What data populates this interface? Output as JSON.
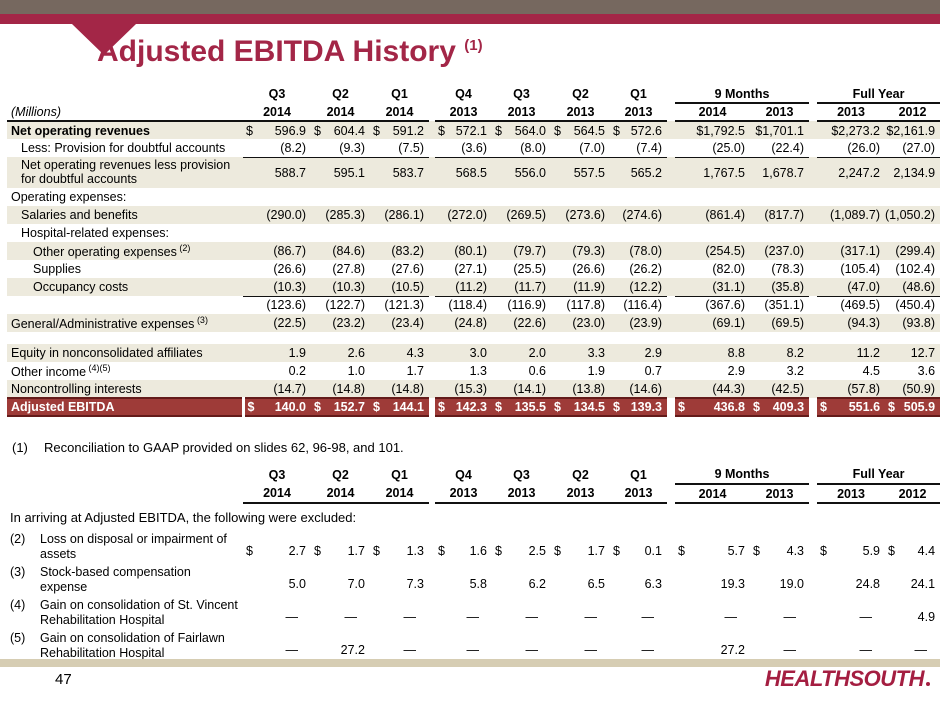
{
  "slide": {
    "title": "Adjusted EBITDA History",
    "title_sup": "(1)",
    "footnote_num": "(1)",
    "footnote_text": "Reconciliation to GAAP provided on slides 62, 96-98, and 101.",
    "page_number": "47",
    "logo_text": "HEALTHSOUTH"
  },
  "colors": {
    "top_bar": "#76685f",
    "accent_maroon": "#a32647",
    "total_row_bg": "#9e3b38",
    "total_row_border": "#641b1a",
    "row_stripe": "#edeadd",
    "bottom_bar": "#d6cdb3",
    "logo": "#a41e41"
  },
  "columns": {
    "units_label": "(Millions)",
    "quarters": [
      "Q3",
      "Q2",
      "Q1",
      "Q4",
      "Q3",
      "Q2",
      "Q1"
    ],
    "groups": [
      "9 Months",
      "Full Year"
    ],
    "years": [
      "2014",
      "2014",
      "2014",
      "2013",
      "2013",
      "2013",
      "2013",
      "2014",
      "2013",
      "2013",
      "2012"
    ]
  },
  "table1": {
    "rows": [
      {
        "label": "Net operating revenues",
        "bold": true,
        "indent": 0,
        "bg": "tan",
        "values": [
          "$ 596.9",
          "$ 604.4",
          "$ 591.2",
          "$ 572.1",
          "$ 564.0",
          "$ 564.5",
          "$ 572.6",
          "$1,792.5",
          "$1,701.1",
          "$2,273.2",
          "$2,161.9"
        ]
      },
      {
        "label": "Less: Provision for doubtful accounts",
        "indent": 1,
        "bg": "white",
        "line": true,
        "values": [
          "(8.2)",
          "(9.3)",
          "(7.5)",
          "(3.6)",
          "(8.0)",
          "(7.0)",
          "(7.4)",
          "(25.0)",
          "(22.4)",
          "(26.0)",
          "(27.0)"
        ]
      },
      {
        "label": "Net operating revenues less provision for doubtful accounts",
        "indent": 1,
        "bg": "tan",
        "tall": true,
        "values": [
          "588.7",
          "595.1",
          "583.7",
          "568.5",
          "556.0",
          "557.5",
          "565.2",
          "1,767.5",
          "1,678.7",
          "2,247.2",
          "2,134.9"
        ]
      },
      {
        "label": "Operating expenses:",
        "indent": 0,
        "bg": "white",
        "values": [
          "",
          "",
          "",
          "",
          "",
          "",
          "",
          "",
          "",
          "",
          ""
        ]
      },
      {
        "label": "Salaries and benefits",
        "indent": 1,
        "bg": "tan",
        "values": [
          "(290.0)",
          "(285.3)",
          "(286.1)",
          "(272.0)",
          "(269.5)",
          "(273.6)",
          "(274.6)",
          "(861.4)",
          "(817.7)",
          "(1,089.7)",
          "(1,050.2)"
        ]
      },
      {
        "label": "Hospital-related expenses:",
        "indent": 1,
        "bg": "white",
        "values": [
          "",
          "",
          "",
          "",
          "",
          "",
          "",
          "",
          "",
          "",
          ""
        ]
      },
      {
        "label": "Other operating expenses",
        "sup": "(2)",
        "indent": 2,
        "bg": "tan",
        "values": [
          "(86.7)",
          "(84.6)",
          "(83.2)",
          "(80.1)",
          "(79.7)",
          "(79.3)",
          "(78.0)",
          "(254.5)",
          "(237.0)",
          "(317.1)",
          "(299.4)"
        ]
      },
      {
        "label": "Supplies",
        "indent": 2,
        "bg": "white",
        "values": [
          "(26.6)",
          "(27.8)",
          "(27.6)",
          "(27.1)",
          "(25.5)",
          "(26.6)",
          "(26.2)",
          "(82.0)",
          "(78.3)",
          "(105.4)",
          "(102.4)"
        ]
      },
      {
        "label": "Occupancy costs",
        "indent": 2,
        "bg": "tan",
        "line": true,
        "values": [
          "(10.3)",
          "(10.3)",
          "(10.5)",
          "(11.2)",
          "(11.7)",
          "(11.9)",
          "(12.2)",
          "(31.1)",
          "(35.8)",
          "(47.0)",
          "(48.6)"
        ]
      },
      {
        "label": "",
        "indent": 0,
        "bg": "white",
        "values": [
          "(123.6)",
          "(122.7)",
          "(121.3)",
          "(118.4)",
          "(116.9)",
          "(117.8)",
          "(116.4)",
          "(367.6)",
          "(351.1)",
          "(469.5)",
          "(450.4)"
        ]
      },
      {
        "label": "General/Administrative expenses",
        "sup": "(3)",
        "indent": 0,
        "bg": "tan",
        "values": [
          "(22.5)",
          "(23.2)",
          "(23.4)",
          "(24.8)",
          "(22.6)",
          "(23.0)",
          "(23.9)",
          "(69.1)",
          "(69.5)",
          "(94.3)",
          "(93.8)"
        ]
      },
      {
        "label": "",
        "indent": 0,
        "bg": "white",
        "spacer": true,
        "values": [
          "",
          "",
          "",
          "",
          "",
          "",
          "",
          "",
          "",
          "",
          ""
        ]
      },
      {
        "label": "Equity in nonconsolidated affiliates",
        "indent": 0,
        "bg": "tan",
        "values": [
          "1.9",
          "2.6",
          "4.3",
          "3.0",
          "2.0",
          "3.3",
          "2.9",
          "8.8",
          "8.2",
          "11.2",
          "12.7"
        ]
      },
      {
        "label": "Other income",
        "sup": "(4)(5)",
        "indent": 0,
        "bg": "white",
        "values": [
          "0.2",
          "1.0",
          "1.7",
          "1.3",
          "0.6",
          "1.9",
          "0.7",
          "2.9",
          "3.2",
          "4.5",
          "3.6"
        ]
      },
      {
        "label": "Noncontrolling interests",
        "indent": 0,
        "bg": "tan",
        "line": true,
        "values": [
          "(14.7)",
          "(14.8)",
          "(14.8)",
          "(15.3)",
          "(14.1)",
          "(13.8)",
          "(14.6)",
          "(44.3)",
          "(42.5)",
          "(57.8)",
          "(50.9)"
        ]
      },
      {
        "label": "Adjusted EBITDA",
        "indent": 0,
        "total": true,
        "values": [
          "$ 140.0",
          "$ 152.7",
          "$ 144.1",
          "$ 142.3",
          "$ 135.5",
          "$ 134.5",
          "$ 139.3",
          "$ 436.8",
          "$ 409.3",
          "$ 551.6",
          "$ 505.9"
        ]
      }
    ]
  },
  "table2": {
    "intro": "In arriving at Adjusted EBITDA, the following were excluded:",
    "rows": [
      {
        "num": "(2)",
        "label": "Loss on disposal or impairment of assets",
        "values": [
          "$ 2.7",
          "$ 1.7",
          "$ 1.3",
          "$ 1.6",
          "$ 2.5",
          "$ 1.7",
          "$ 0.1",
          "$ 5.7",
          "$ 4.3",
          "$ 5.9",
          "$ 4.4"
        ]
      },
      {
        "num": "(3)",
        "label": "Stock-based compensation expense",
        "values": [
          "5.0",
          "7.0",
          "7.3",
          "5.8",
          "6.2",
          "6.5",
          "6.3",
          "19.3",
          "19.0",
          "24.8",
          "24.1"
        ]
      },
      {
        "num": "(4)",
        "label": "Gain on consolidation of St. Vincent Rehabilitation Hospital",
        "values": [
          "—",
          "—",
          "—",
          "—",
          "—",
          "—",
          "—",
          "—",
          "—",
          "—",
          "4.9"
        ]
      },
      {
        "num": "(5)",
        "label": "Gain on consolidation of Fairlawn Rehabilitation Hospital",
        "values": [
          "—",
          "27.2",
          "—",
          "—",
          "—",
          "—",
          "—",
          "27.2",
          "—",
          "—",
          "—"
        ]
      }
    ]
  }
}
